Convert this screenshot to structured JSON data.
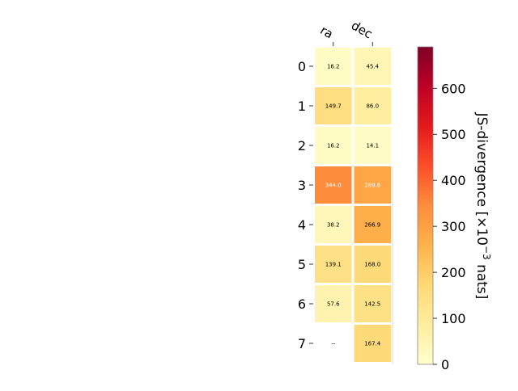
{
  "chart_data": {
    "type": "heatmap",
    "title": "",
    "columns": [
      "ra",
      "dec"
    ],
    "rows": [
      "0",
      "1",
      "2",
      "3",
      "4",
      "5",
      "6",
      "7"
    ],
    "values": [
      [
        16.2,
        45.4
      ],
      [
        149.7,
        86.0
      ],
      [
        16.2,
        14.1
      ],
      [
        344.0,
        289.8
      ],
      [
        38.2,
        266.9
      ],
      [
        139.1,
        168.0
      ],
      [
        57.6,
        142.5
      ],
      [
        null,
        167.4
      ]
    ],
    "missing_label": "--",
    "colormap": "YlOrRd",
    "colormap_stops": [
      "#ffffcc",
      "#ffeda0",
      "#fed976",
      "#feb24c",
      "#fd8d3c",
      "#fc4e2a",
      "#e31a1c",
      "#bd0026",
      "#800026"
    ],
    "vmin": 0,
    "vmax": 690,
    "colorbar": {
      "label": "JS-divergence [×10",
      "label_exponent": "−3",
      "label_suffix": " nats]",
      "ticks": [
        0,
        100,
        200,
        300,
        400,
        500,
        600
      ],
      "tick_labels": [
        "0",
        "100",
        "200",
        "300",
        "400",
        "500",
        "600"
      ]
    },
    "grid": false
  }
}
